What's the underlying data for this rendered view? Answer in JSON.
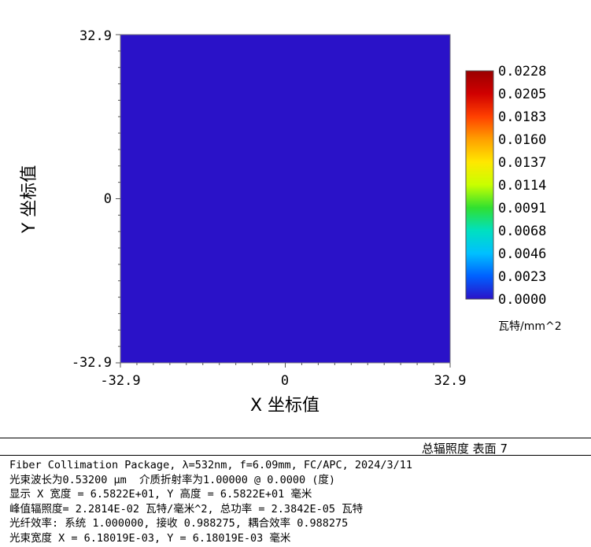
{
  "chart_data": {
    "type": "heatmap",
    "xlabel": "X 坐标值",
    "ylabel": "Y 坐标值",
    "xlim": [
      -32.9,
      32.9
    ],
    "ylim": [
      -32.9,
      32.9
    ],
    "x_tick_labels": [
      "-32.9",
      "0",
      "32.9"
    ],
    "y_tick_labels": [
      "32.9",
      "0",
      "-32.9"
    ],
    "field_value": 0.0,
    "colorbar": {
      "range": [
        0.0,
        0.0228
      ],
      "tick_labels": [
        "0.0228",
        "0.0205",
        "0.0183",
        "0.0160",
        "0.0137",
        "0.0114",
        "0.0091",
        "0.0068",
        "0.0046",
        "0.0023",
        "0.0000"
      ],
      "unit": "瓦特/mm^2",
      "colors": [
        "#2a12c8",
        "#0060ff",
        "#00c0ff",
        "#00e0c0",
        "#30e030",
        "#c8ff00",
        "#ffe800",
        "#ffa000",
        "#ff4000",
        "#d00000",
        "#9a0000"
      ]
    }
  },
  "footer": {
    "title": "总辐照度 表面 7",
    "lines": [
      "Fiber Collimation Package, λ=532nm, f=6.09mm, FC/APC, 2024/3/11",
      "光束波长为0.53200 µm  介质折射率为1.00000 @ 0.0000 (度)",
      "显示 X 宽度 = 6.5822E+01, Y 高度 = 6.5822E+01 毫米",
      "峰值辐照度= 2.2814E-02 瓦特/毫米^2, 总功率 = 2.3842E-05 瓦特",
      "光纤效率: 系统 1.000000, 接收 0.988275, 耦合效率 0.988275",
      "光束宽度 X = 6.18019E-03, Y = 6.18019E-03 毫米"
    ]
  }
}
